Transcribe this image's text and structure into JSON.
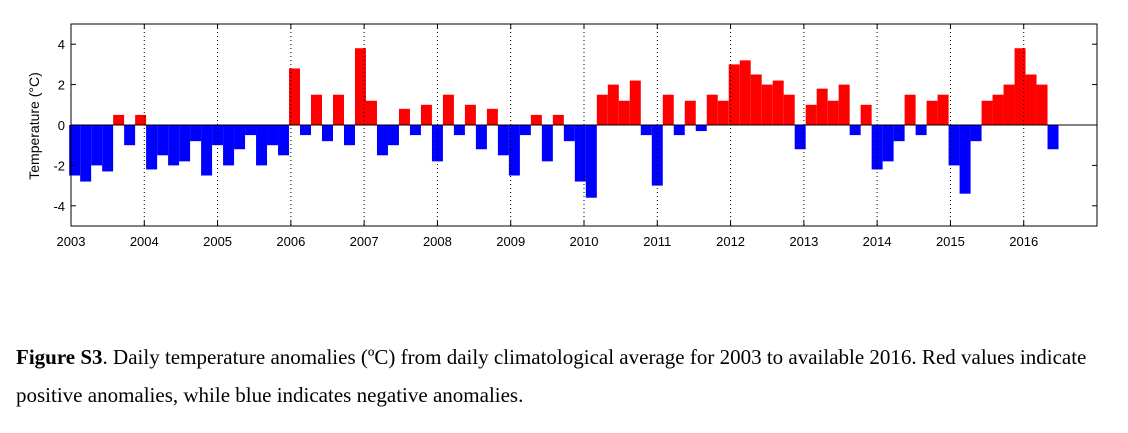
{
  "chart_data": {
    "type": "bar",
    "title": "",
    "xlabel": "",
    "ylabel": "Temperature (°C)",
    "ylabel_unit": "°C",
    "ylim": [
      -5,
      5
    ],
    "xlim": [
      2003,
      2017
    ],
    "yticks": [
      -4,
      -2,
      0,
      2,
      4
    ],
    "xticks": [
      2003,
      2004,
      2005,
      2006,
      2007,
      2008,
      2009,
      2010,
      2011,
      2012,
      2013,
      2014,
      2015,
      2016
    ],
    "vertical_gridlines": "dotted at each year",
    "positive_color": "#ff0000",
    "negative_color": "#0000ff",
    "x": [
      2003.05,
      2003.2,
      2003.35,
      2003.5,
      2003.65,
      2003.8,
      2003.95,
      2004.1,
      2004.25,
      2004.4,
      2004.55,
      2004.7,
      2004.85,
      2005.0,
      2005.15,
      2005.3,
      2005.45,
      2005.6,
      2005.75,
      2005.9,
      2006.05,
      2006.2,
      2006.35,
      2006.5,
      2006.65,
      2006.8,
      2006.95,
      2007.1,
      2007.25,
      2007.4,
      2007.55,
      2007.7,
      2007.85,
      2008.0,
      2008.15,
      2008.3,
      2008.45,
      2008.6,
      2008.75,
      2008.9,
      2009.05,
      2009.2,
      2009.35,
      2009.5,
      2009.65,
      2009.8,
      2009.95,
      2010.1,
      2010.25,
      2010.4,
      2010.55,
      2010.7,
      2010.85,
      2011.0,
      2011.15,
      2011.3,
      2011.45,
      2011.6,
      2011.75,
      2011.9,
      2012.05,
      2012.2,
      2012.35,
      2012.5,
      2012.65,
      2012.8,
      2012.95,
      2013.1,
      2013.25,
      2013.4,
      2013.55,
      2013.7,
      2013.85,
      2014.0,
      2014.15,
      2014.3,
      2014.45,
      2014.6,
      2014.75,
      2014.9,
      2015.05,
      2015.2,
      2015.35,
      2015.5,
      2015.65,
      2015.8,
      2015.95,
      2016.1,
      2016.25,
      2016.4
    ],
    "values": [
      -2.5,
      -2.8,
      -2.0,
      -2.3,
      0.5,
      -1.0,
      0.5,
      -2.2,
      -1.5,
      -2.0,
      -1.8,
      -0.8,
      -2.5,
      -1.0,
      -2.0,
      -1.2,
      -0.5,
      -2.0,
      -1.0,
      -1.5,
      2.8,
      -0.5,
      1.5,
      -0.8,
      1.5,
      -1.0,
      3.8,
      1.2,
      -1.5,
      -1.0,
      0.8,
      -0.5,
      1.0,
      -1.8,
      1.5,
      -0.5,
      1.0,
      -1.2,
      0.8,
      -1.5,
      -2.5,
      -0.5,
      0.5,
      -1.8,
      0.5,
      -0.8,
      -2.8,
      -3.6,
      1.5,
      2.0,
      1.2,
      2.2,
      -0.5,
      -3.0,
      1.5,
      -0.5,
      1.2,
      -0.3,
      1.5,
      1.2,
      3.0,
      3.2,
      2.5,
      2.0,
      2.2,
      1.5,
      -1.2,
      1.0,
      1.8,
      1.2,
      2.0,
      -0.5,
      1.0,
      -2.2,
      -1.8,
      -0.8,
      1.5,
      -0.5,
      1.2,
      1.5,
      -2.0,
      -3.4,
      -0.8,
      1.2,
      1.5,
      2.0,
      3.8,
      2.5,
      2.0,
      -1.2
    ]
  },
  "caption": {
    "label": "Figure S3",
    "text": ". Daily temperature anomalies (ºC) from daily climatological average for 2003 to available 2016. Red values indicate positive anomalies, while blue indicates negative anomalies."
  }
}
